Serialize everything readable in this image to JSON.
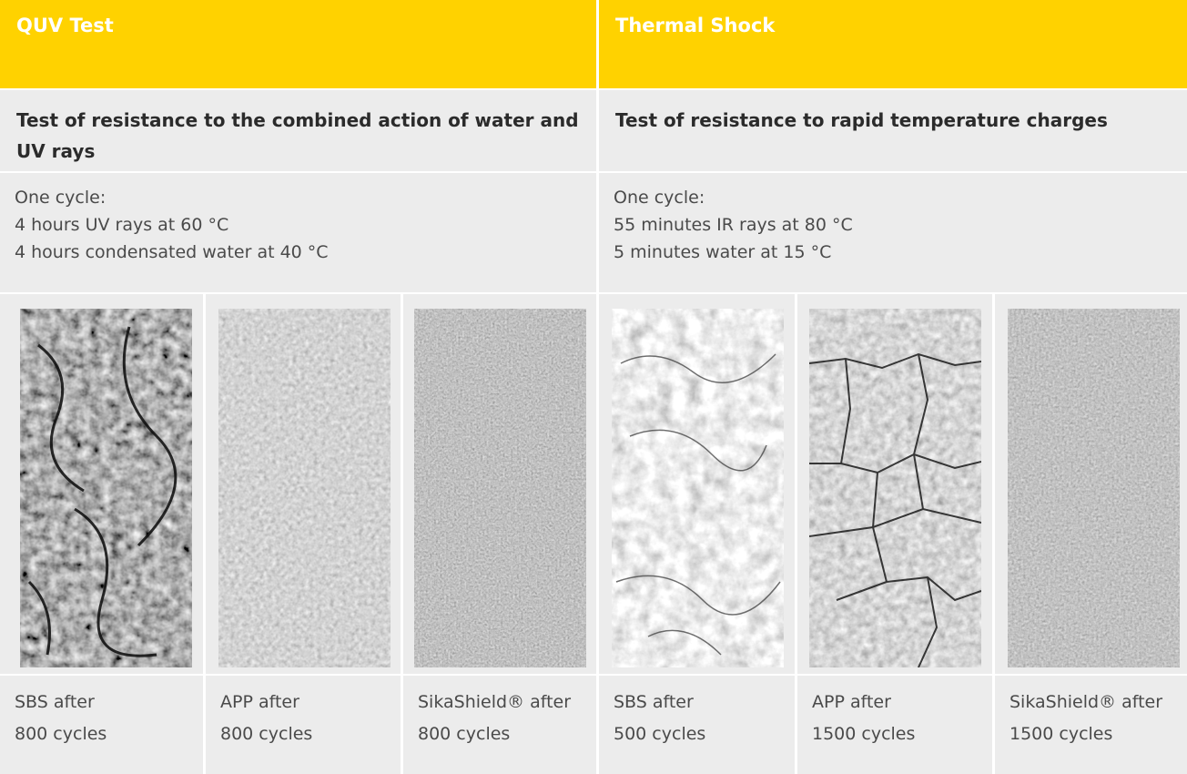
{
  "columns": [
    {
      "title": "QUV Test",
      "subtitle": "Test of resistance to the combined action of water and UV rays",
      "cycle_lines": [
        "One cycle:",
        "4 hours UV rays at 60 °C",
        "4 hours condensated water at 40 °C"
      ],
      "samples": [
        {
          "line1": "SBS after",
          "line2": "800 cycles"
        },
        {
          "line1": "APP after",
          "line2": "800 cycles"
        },
        {
          "line1": "SikaShield® after",
          "line2": "800 cycles"
        }
      ]
    },
    {
      "title": "Thermal Shock",
      "subtitle": "Test of resistance to rapid temperature charges",
      "cycle_lines": [
        "One cycle:",
        "55 minutes IR rays at 80 °C",
        "5 minutes water at 15 °C"
      ],
      "samples": [
        {
          "line1": "SBS after",
          "line2": "500 cycles"
        },
        {
          "line1": "APP after",
          "line2": "1500 cycles"
        },
        {
          "line1": "SikaShield® after",
          "line2": "1500 cycles"
        }
      ]
    }
  ],
  "colors": {
    "header_yellow": "#ffd200",
    "panel_gray": "#ececec",
    "text_dark": "#2b2b2b",
    "text_gray": "#4a4a4a"
  }
}
